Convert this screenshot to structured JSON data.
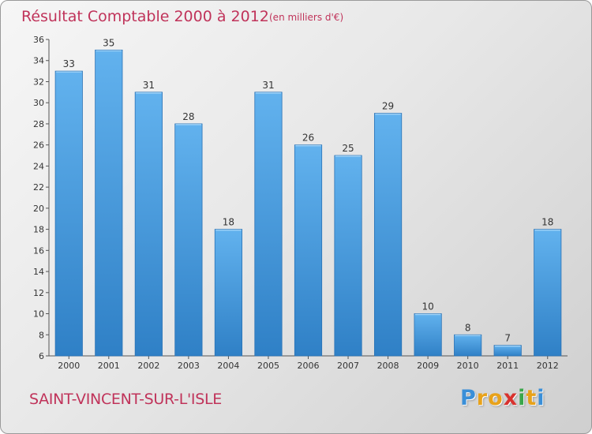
{
  "title": "Résultat Comptable 2000 à 2012",
  "subtitle": "(en milliers d'€)",
  "commune": "SAINT-VINCENT-SUR-L'ISLE",
  "logo": {
    "letters": [
      "P",
      "r",
      "o",
      "x",
      "i",
      "t",
      "i"
    ],
    "colors": [
      "#3a8fd8",
      "#e8a21a",
      "#e8a21a",
      "#d8322e",
      "#3aa64a",
      "#e8a21a",
      "#3a8fd8"
    ]
  },
  "colors": {
    "bar": "#4a9ee0",
    "bar_light": "#6cb8f0",
    "bar_dark": "#2f7fc4",
    "title": "#c0335a"
  },
  "chart_data": {
    "type": "bar",
    "title": "Résultat Comptable 2000 à 2012",
    "subtitle": "(en milliers d'€)",
    "categories": [
      "2000",
      "2001",
      "2002",
      "2003",
      "2004",
      "2005",
      "2006",
      "2007",
      "2008",
      "2009",
      "2010",
      "2011",
      "2012"
    ],
    "values": [
      33,
      35,
      31,
      28,
      18,
      31,
      26,
      25,
      29,
      10,
      8,
      7,
      18
    ],
    "ylim": [
      6,
      36
    ],
    "yticks": [
      6,
      8,
      10,
      12,
      14,
      16,
      18,
      20,
      22,
      24,
      26,
      28,
      30,
      32,
      34,
      36
    ],
    "grid": false,
    "legend": "none"
  }
}
